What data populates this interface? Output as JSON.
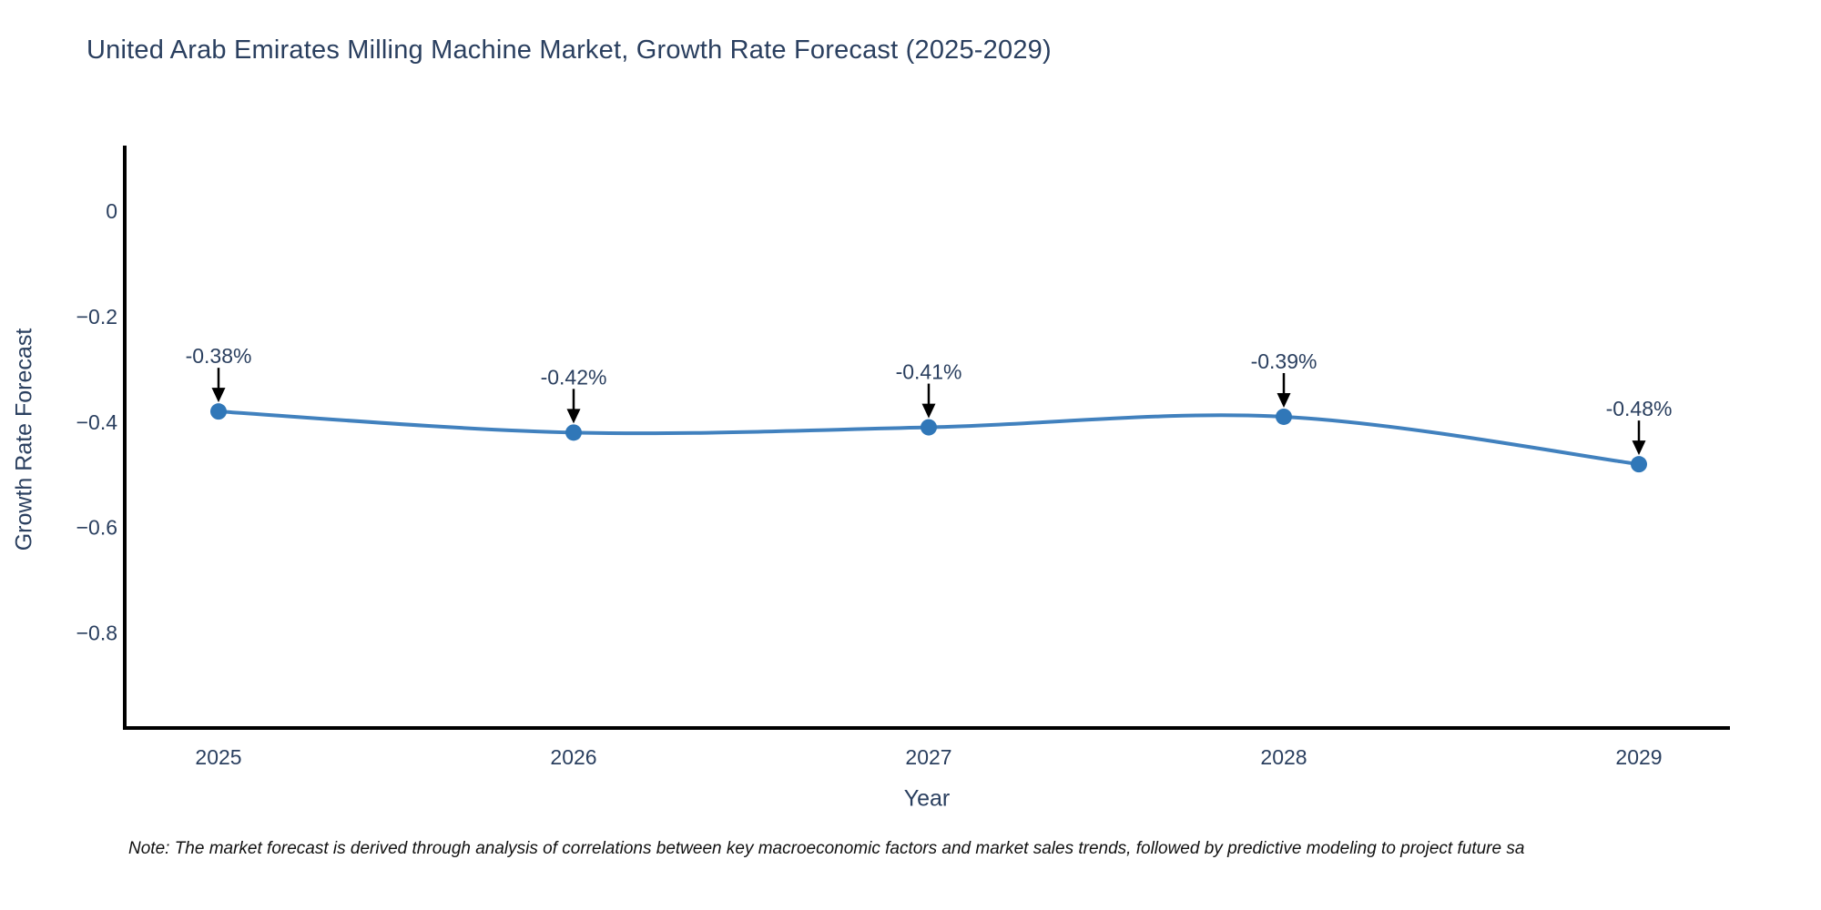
{
  "page": {
    "note": "Note: The market forecast is derived through analysis of correlations between key macroeconomic factors and market sales trends, followed by predictive modeling to project future sa"
  },
  "chart_data": {
    "type": "line",
    "title": "United Arab Emirates Milling Machine Market, Growth Rate Forecast (2025-2029)",
    "x": [
      "2025",
      "2026",
      "2027",
      "2028",
      "2029"
    ],
    "series": [
      {
        "name": "Growth Rate Forecast",
        "values": [
          -0.38,
          -0.42,
          -0.41,
          -0.39,
          -0.48
        ]
      }
    ],
    "point_labels": [
      "-0.38%",
      "-0.42%",
      "-0.41%",
      "-0.39%",
      "-0.48%"
    ],
    "xlabel": "Year",
    "ylabel": "Growth Rate Forecast",
    "yticks": [
      0,
      -0.2,
      -0.4,
      -0.6,
      -0.8
    ],
    "ytick_labels": [
      "0",
      "−0.2",
      "−0.4",
      "−0.6",
      "−0.8"
    ],
    "ylim": [
      -0.98,
      0.124
    ],
    "grid": false,
    "legend_position": "none",
    "line_shape": "spline",
    "colors": {
      "line": "#4181be",
      "marker": "#3077b8",
      "arrow": "#000000",
      "text": "#2a3f5f",
      "axis_line": "#000000",
      "note_text": "#111111"
    }
  }
}
